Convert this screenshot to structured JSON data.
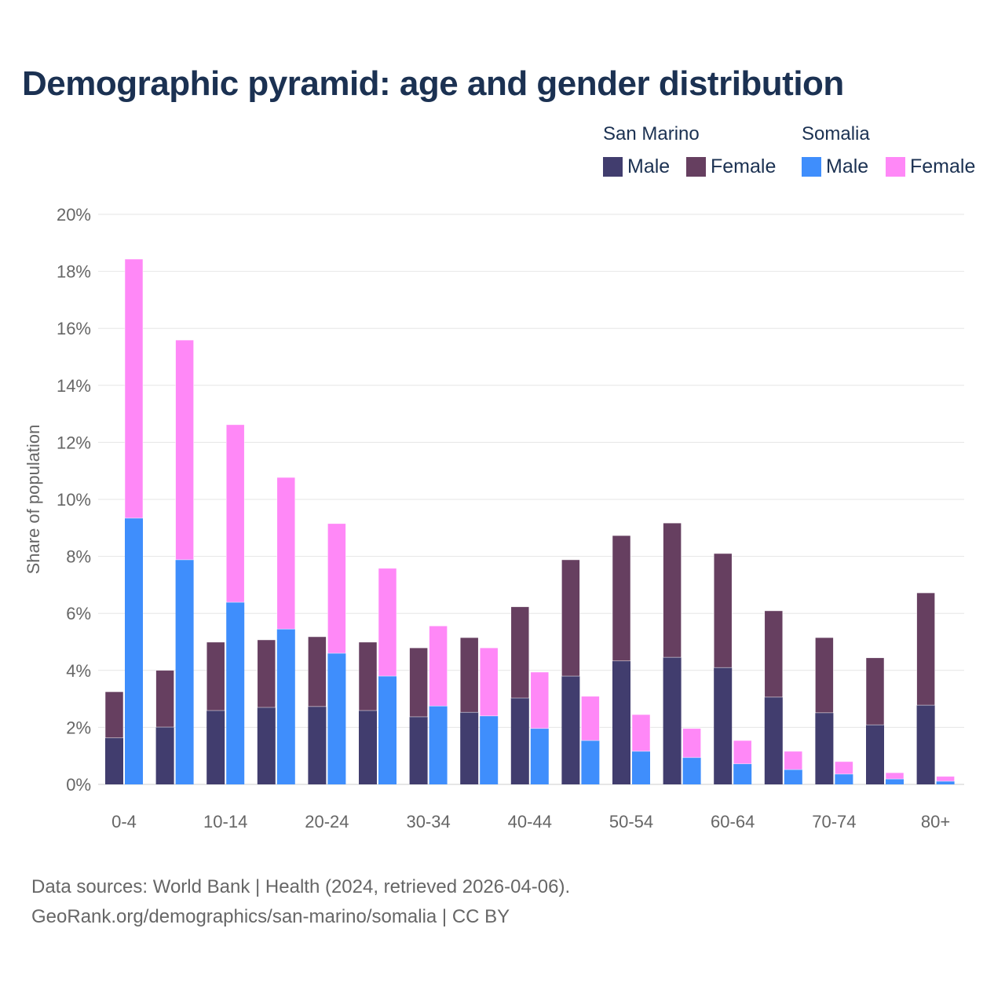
{
  "chart_data": {
    "type": "bar",
    "title": "Demographic pyramid: age and gender distribution",
    "ylabel": "Share of population",
    "xlabel": "",
    "ylim": [
      0,
      20
    ],
    "yticks": [
      "0%",
      "2%",
      "4%",
      "6%",
      "8%",
      "10%",
      "12%",
      "14%",
      "16%",
      "18%",
      "20%"
    ],
    "ytick_values": [
      0,
      2,
      4,
      6,
      8,
      10,
      12,
      14,
      16,
      18,
      20
    ],
    "grid": true,
    "categories": [
      "0-4",
      "5-9",
      "10-14",
      "15-19",
      "20-24",
      "25-29",
      "30-34",
      "35-39",
      "40-44",
      "45-49",
      "50-54",
      "55-59",
      "60-64",
      "65-69",
      "70-74",
      "75-79",
      "80+"
    ],
    "xtick_labels": [
      "0-4",
      "",
      "10-14",
      "",
      "20-24",
      "",
      "30-34",
      "",
      "40-44",
      "",
      "50-54",
      "",
      "60-64",
      "",
      "70-74",
      "",
      "80+"
    ],
    "legend": {
      "placement": "top-right",
      "groups": [
        {
          "name": "San Marino",
          "items": [
            "Male",
            "Female"
          ]
        },
        {
          "name": "Somalia",
          "items": [
            "Male",
            "Female"
          ]
        }
      ]
    },
    "series": [
      {
        "country": "San Marino",
        "name": "Male",
        "color": "#413d6e",
        "values": [
          1.63,
          2.01,
          2.59,
          2.7,
          2.73,
          2.59,
          2.37,
          2.53,
          3.03,
          3.8,
          4.33,
          4.46,
          4.1,
          3.06,
          2.51,
          2.09,
          2.78
        ]
      },
      {
        "country": "San Marino",
        "name": "Female",
        "color": "#663f60",
        "values": [
          1.62,
          1.99,
          2.4,
          2.37,
          2.45,
          2.4,
          2.42,
          2.62,
          3.2,
          4.08,
          4.4,
          4.71,
          4.0,
          3.03,
          2.64,
          2.35,
          3.94
        ]
      },
      {
        "country": "Somalia",
        "name": "Male",
        "color": "#3f8efc",
        "values": [
          9.34,
          7.88,
          6.39,
          5.45,
          4.6,
          3.8,
          2.75,
          2.4,
          1.96,
          1.54,
          1.16,
          0.94,
          0.72,
          0.52,
          0.36,
          0.19,
          0.11
        ]
      },
      {
        "country": "Somalia",
        "name": "Female",
        "color": "#ff88f7",
        "values": [
          9.09,
          7.71,
          6.23,
          5.32,
          4.55,
          3.78,
          2.81,
          2.39,
          1.98,
          1.55,
          1.29,
          1.02,
          0.82,
          0.64,
          0.44,
          0.22,
          0.17
        ]
      }
    ]
  },
  "footer": {
    "line1": "Data sources: World Bank | Health (2024, retrieved 2026-04-06).",
    "line2": "GeoRank.org/demographics/san-marino/somalia | CC BY"
  }
}
